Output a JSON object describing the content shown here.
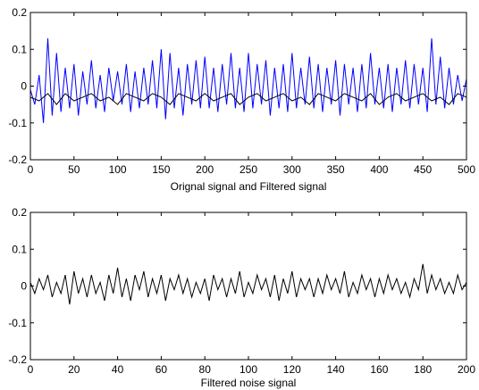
{
  "chart_data": [
    {
      "type": "line",
      "xlabel": "Orignal signal and Filtered signal",
      "xlim": [
        0,
        500
      ],
      "ylim": [
        -0.2,
        0.2
      ],
      "xticks": [
        "0",
        "50",
        "100",
        "150",
        "200",
        "250",
        "300",
        "350",
        "400",
        "450",
        "500"
      ],
      "yticks": [
        "0.2",
        "0.1",
        "0",
        "-0.1",
        "-0.2"
      ],
      "series": [
        {
          "color": "#0000ff",
          "x": [
            0,
            5,
            10,
            15,
            20,
            25,
            30,
            35,
            40,
            45,
            50,
            55,
            60,
            65,
            70,
            75,
            80,
            85,
            90,
            95,
            100,
            105,
            110,
            115,
            120,
            125,
            130,
            135,
            140,
            145,
            150,
            155,
            160,
            165,
            170,
            175,
            180,
            185,
            190,
            195,
            200,
            205,
            210,
            215,
            220,
            225,
            230,
            235,
            240,
            245,
            250,
            255,
            260,
            265,
            270,
            275,
            280,
            285,
            290,
            295,
            300,
            305,
            310,
            315,
            320,
            325,
            330,
            335,
            340,
            345,
            350,
            355,
            360,
            365,
            370,
            375,
            380,
            385,
            390,
            395,
            400,
            405,
            410,
            415,
            420,
            425,
            430,
            435,
            440,
            445,
            450,
            455,
            460,
            465,
            470,
            475,
            480,
            485,
            490,
            495,
            500
          ],
          "values": [
            -0.01,
            -0.05,
            0.03,
            -0.1,
            0.13,
            -0.08,
            0.09,
            -0.07,
            0.05,
            -0.06,
            0.06,
            -0.08,
            0.04,
            -0.05,
            0.07,
            -0.06,
            0.03,
            -0.07,
            0.05,
            -0.04,
            0.04,
            -0.05,
            0.06,
            -0.07,
            0.04,
            -0.06,
            0.05,
            -0.05,
            0.07,
            -0.06,
            0.1,
            -0.09,
            0.09,
            -0.06,
            0.05,
            -0.08,
            0.06,
            -0.05,
            0.07,
            -0.06,
            0.08,
            -0.06,
            0.05,
            -0.07,
            0.06,
            -0.05,
            0.09,
            -0.06,
            0.05,
            -0.07,
            0.09,
            -0.06,
            0.06,
            -0.05,
            0.07,
            -0.08,
            0.05,
            -0.06,
            0.06,
            -0.07,
            0.09,
            -0.06,
            0.05,
            -0.05,
            0.08,
            -0.06,
            0.06,
            -0.07,
            0.05,
            -0.05,
            0.07,
            -0.08,
            0.06,
            -0.05,
            0.05,
            -0.07,
            0.06,
            -0.06,
            0.09,
            -0.05,
            0.05,
            -0.06,
            0.06,
            -0.07,
            0.05,
            -0.05,
            0.07,
            -0.06,
            0.06,
            -0.05,
            0.05,
            -0.07,
            0.13,
            -0.05,
            0.08,
            -0.06,
            0.05,
            -0.05,
            0.03,
            -0.04,
            0.02
          ]
        },
        {
          "color": "#000000",
          "x": [
            0,
            10,
            20,
            30,
            40,
            50,
            60,
            70,
            80,
            90,
            100,
            110,
            120,
            130,
            140,
            150,
            160,
            170,
            180,
            190,
            200,
            210,
            220,
            230,
            240,
            250,
            260,
            270,
            280,
            290,
            300,
            310,
            320,
            330,
            340,
            350,
            360,
            370,
            380,
            390,
            400,
            410,
            420,
            430,
            440,
            450,
            460,
            470,
            480,
            490,
            500
          ],
          "values": [
            -0.03,
            -0.04,
            -0.02,
            -0.05,
            -0.02,
            -0.04,
            -0.03,
            -0.02,
            -0.04,
            -0.03,
            -0.05,
            -0.02,
            -0.03,
            -0.04,
            -0.02,
            -0.03,
            -0.05,
            -0.02,
            -0.03,
            -0.04,
            -0.02,
            -0.04,
            -0.03,
            -0.02,
            -0.05,
            -0.03,
            -0.02,
            -0.04,
            -0.03,
            -0.02,
            -0.04,
            -0.03,
            -0.05,
            -0.02,
            -0.03,
            -0.04,
            -0.02,
            -0.03,
            -0.04,
            -0.02,
            -0.05,
            -0.03,
            -0.02,
            -0.04,
            -0.03,
            -0.02,
            -0.04,
            -0.03,
            -0.05,
            -0.02,
            -0.03
          ]
        }
      ]
    },
    {
      "type": "line",
      "xlabel": "Filtered noise signal",
      "xlim": [
        0,
        200
      ],
      "ylim": [
        -0.2,
        0.2
      ],
      "xticks": [
        "0",
        "20",
        "40",
        "60",
        "80",
        "100",
        "120",
        "140",
        "160",
        "180",
        "200"
      ],
      "yticks": [
        "0.2",
        "0.1",
        "0",
        "-0.1",
        "-0.2"
      ],
      "series": [
        {
          "color": "#000000",
          "x": [
            0,
            2,
            4,
            6,
            8,
            10,
            12,
            14,
            16,
            18,
            20,
            22,
            24,
            26,
            28,
            30,
            32,
            34,
            36,
            38,
            40,
            42,
            44,
            46,
            48,
            50,
            52,
            54,
            56,
            58,
            60,
            62,
            64,
            66,
            68,
            70,
            72,
            74,
            76,
            78,
            80,
            82,
            84,
            86,
            88,
            90,
            92,
            94,
            96,
            98,
            100,
            102,
            104,
            106,
            108,
            110,
            112,
            114,
            116,
            118,
            120,
            122,
            124,
            126,
            128,
            130,
            132,
            134,
            136,
            138,
            140,
            142,
            144,
            146,
            148,
            150,
            152,
            154,
            156,
            158,
            160,
            162,
            164,
            166,
            168,
            170,
            172,
            174,
            176,
            178,
            180,
            182,
            184,
            186,
            188,
            190,
            192,
            194,
            196,
            198,
            200
          ],
          "values": [
            0.01,
            -0.02,
            0.02,
            -0.01,
            0.03,
            -0.03,
            0.01,
            -0.02,
            0.03,
            -0.05,
            0.04,
            -0.02,
            0.02,
            -0.03,
            0.03,
            -0.02,
            0.01,
            -0.04,
            0.03,
            -0.02,
            0.05,
            -0.03,
            0.02,
            -0.04,
            0.03,
            -0.01,
            0.04,
            -0.03,
            0.02,
            -0.02,
            0.03,
            -0.04,
            0.02,
            -0.01,
            0.03,
            -0.02,
            0.02,
            -0.03,
            0.01,
            -0.02,
            0.02,
            -0.04,
            0.03,
            -0.01,
            0.02,
            -0.03,
            0.02,
            -0.02,
            0.04,
            -0.03,
            0.01,
            -0.02,
            0.03,
            -0.01,
            0.02,
            -0.03,
            0.03,
            -0.04,
            0.02,
            -0.02,
            0.04,
            -0.03,
            0.02,
            -0.01,
            0.02,
            -0.03,
            0.02,
            -0.02,
            0.03,
            -0.01,
            0.02,
            -0.02,
            0.04,
            -0.03,
            0.01,
            -0.02,
            0.03,
            -0.01,
            0.02,
            -0.03,
            0.02,
            -0.02,
            0.03,
            -0.01,
            0.02,
            -0.02,
            0.01,
            -0.03,
            0.02,
            -0.01,
            0.06,
            -0.02,
            0.03,
            -0.01,
            0.02,
            -0.02,
            0.01,
            -0.02,
            0.03,
            -0.01,
            0.01
          ]
        }
      ]
    }
  ]
}
